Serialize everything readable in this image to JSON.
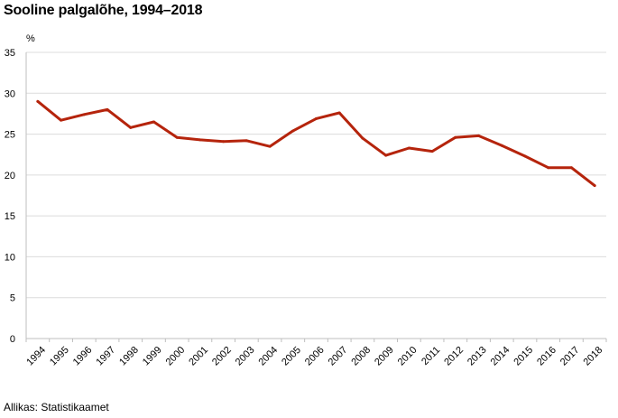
{
  "chart_data": {
    "type": "line",
    "title": "Sooline palgalõhe, 1994–2018",
    "ylabel": "%",
    "xlabel": "",
    "ylim": [
      0,
      35
    ],
    "yticks": [
      0,
      5,
      10,
      15,
      20,
      25,
      30,
      35
    ],
    "grid": true,
    "line_color": "#b5240c",
    "categories": [
      "1994",
      "1995",
      "1996",
      "1997",
      "1998",
      "1999",
      "2000",
      "2001",
      "2002",
      "2003",
      "2004",
      "2005",
      "2006",
      "2007",
      "2008",
      "2009",
      "2010",
      "2011",
      "2012",
      "2013",
      "2014",
      "2015",
      "2016",
      "2017",
      "2018"
    ],
    "series": [
      {
        "values": [
          29.0,
          26.7,
          27.4,
          28.0,
          25.8,
          26.5,
          24.6,
          24.3,
          24.1,
          24.2,
          23.5,
          25.4,
          26.9,
          27.6,
          24.5,
          22.4,
          23.3,
          22.9,
          24.6,
          24.8,
          23.6,
          22.3,
          20.9,
          20.9,
          18.7
        ]
      }
    ],
    "source": "Allikas: Statistikaamet"
  }
}
